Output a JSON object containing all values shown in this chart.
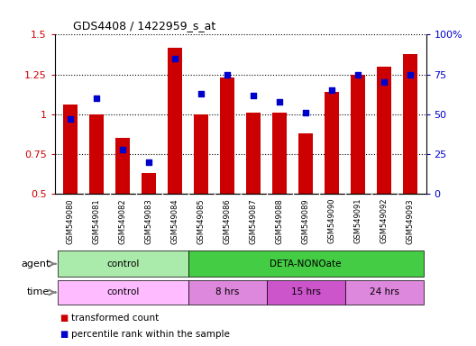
{
  "title": "GDS4408 / 1422959_s_at",
  "samples": [
    "GSM549080",
    "GSM549081",
    "GSM549082",
    "GSM549083",
    "GSM549084",
    "GSM549085",
    "GSM549086",
    "GSM549087",
    "GSM549088",
    "GSM549089",
    "GSM549090",
    "GSM549091",
    "GSM549092",
    "GSM549093"
  ],
  "transformed_count": [
    1.06,
    1.0,
    0.85,
    0.63,
    1.42,
    1.0,
    1.23,
    1.01,
    1.01,
    0.88,
    1.14,
    1.25,
    1.3,
    1.38
  ],
  "percentile_rank": [
    47,
    60,
    28,
    20,
    85,
    63,
    75,
    62,
    58,
    51,
    65,
    75,
    70,
    75
  ],
  "bar_color": "#cc0000",
  "dot_color": "#0000cc",
  "ylim_left": [
    0.5,
    1.5
  ],
  "ylim_right": [
    0,
    100
  ],
  "yticks_left": [
    0.5,
    0.75,
    1.0,
    1.25,
    1.5
  ],
  "ytick_labels_left": [
    "0.5",
    "0.75",
    "1",
    "1.25",
    "1.5"
  ],
  "yticks_right": [
    0,
    25,
    50,
    75,
    100
  ],
  "ytick_labels_right": [
    "0",
    "25",
    "50",
    "75",
    "100%"
  ],
  "agent_groups": [
    {
      "label": "control",
      "start": 0,
      "end": 4,
      "color": "#aaeaaa"
    },
    {
      "label": "DETA-NONOate",
      "start": 5,
      "end": 13,
      "color": "#44cc44"
    }
  ],
  "time_groups": [
    {
      "label": "control",
      "start": 0,
      "end": 4,
      "color": "#ffbbff"
    },
    {
      "label": "8 hrs",
      "start": 5,
      "end": 7,
      "color": "#dd88dd"
    },
    {
      "label": "15 hrs",
      "start": 8,
      "end": 10,
      "color": "#cc55cc"
    },
    {
      "label": "24 hrs",
      "start": 11,
      "end": 13,
      "color": "#dd88dd"
    }
  ],
  "sample_bg_color": "#cccccc",
  "background_color": "#ffffff",
  "legend_items": [
    {
      "label": "transformed count",
      "color": "#cc0000"
    },
    {
      "label": "percentile rank within the sample",
      "color": "#0000cc"
    }
  ]
}
